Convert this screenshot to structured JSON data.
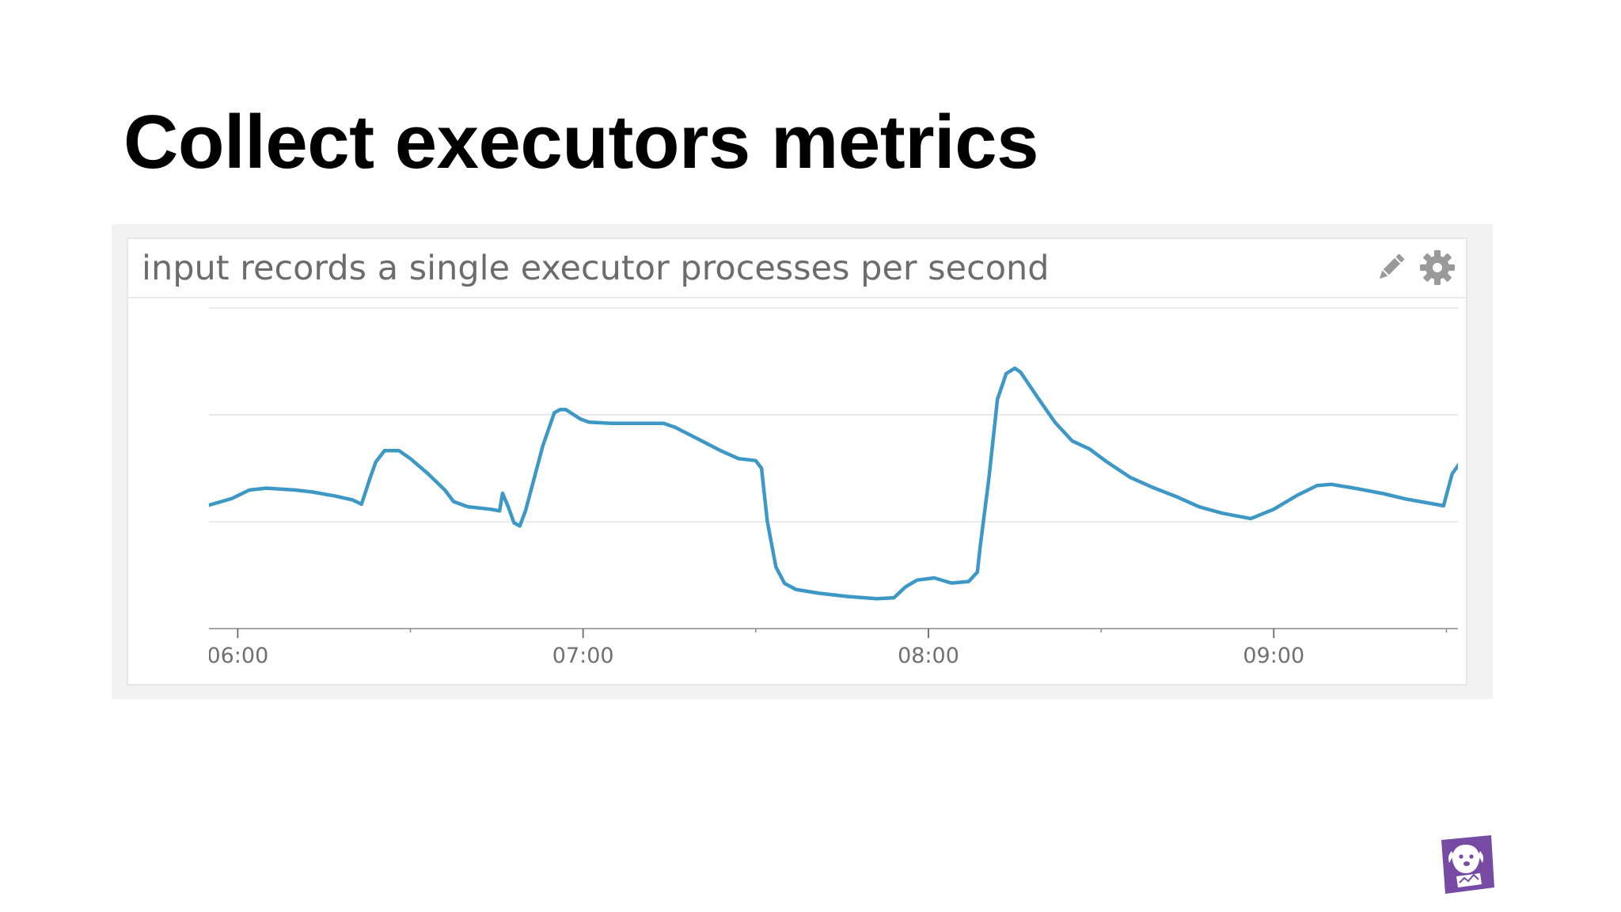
{
  "slide": {
    "title": "Collect executors metrics"
  },
  "widget": {
    "title": "input records a single executor processes per second",
    "edit_icon": "pencil-icon",
    "settings_icon": "gear-icon"
  },
  "logo": {
    "icon": "datadog-logo",
    "color": "#774aa4"
  },
  "chart_data": {
    "type": "line",
    "title": "input records a single executor processes per second",
    "xlabel": "",
    "ylabel": "",
    "x_ticks": [
      "06:00",
      "07:00",
      "08:00",
      "09:00"
    ],
    "x_tick_values": [
      0,
      60,
      120,
      180
    ],
    "xlim": [
      -5,
      212
    ],
    "ylim": [
      0,
      1
    ],
    "y_gridlines": [
      0.333,
      0.667,
      1.0
    ],
    "y_tick_labels_visible": false,
    "grid": "horizontal",
    "legend": "none",
    "line_color": "#3d98c5",
    "series": [
      {
        "points": [
          [
            -5,
            0.385
          ],
          [
            -1,
            0.406
          ],
          [
            2,
            0.432
          ],
          [
            5,
            0.438
          ],
          [
            10,
            0.432
          ],
          [
            13,
            0.426
          ],
          [
            17,
            0.413
          ],
          [
            20,
            0.401
          ],
          [
            21.5,
            0.388
          ],
          [
            23,
            0.47
          ],
          [
            24,
            0.52
          ],
          [
            25.5,
            0.555
          ],
          [
            28,
            0.555
          ],
          [
            30,
            0.53
          ],
          [
            33,
            0.484
          ],
          [
            36,
            0.432
          ],
          [
            37.5,
            0.396
          ],
          [
            40,
            0.38
          ],
          [
            44,
            0.372
          ],
          [
            45.5,
            0.367
          ],
          [
            46,
            0.422
          ],
          [
            47,
            0.38
          ],
          [
            48,
            0.33
          ],
          [
            49,
            0.32
          ],
          [
            50,
            0.368
          ],
          [
            53,
            0.57
          ],
          [
            55,
            0.673
          ],
          [
            56,
            0.683
          ],
          [
            57,
            0.683
          ],
          [
            59.5,
            0.654
          ],
          [
            61,
            0.644
          ],
          [
            65,
            0.64
          ],
          [
            74,
            0.64
          ],
          [
            76,
            0.628
          ],
          [
            80,
            0.591
          ],
          [
            84,
            0.554
          ],
          [
            87,
            0.53
          ],
          [
            90,
            0.524
          ],
          [
            91,
            0.5
          ],
          [
            92,
            0.335
          ],
          [
            93.5,
            0.192
          ],
          [
            95,
            0.141
          ],
          [
            97,
            0.122
          ],
          [
            101,
            0.11
          ],
          [
            106,
            0.1
          ],
          [
            111,
            0.093
          ],
          [
            114,
            0.096
          ],
          [
            116,
            0.13
          ],
          [
            118,
            0.151
          ],
          [
            121,
            0.158
          ],
          [
            124,
            0.142
          ],
          [
            127,
            0.147
          ],
          [
            128.5,
            0.176
          ],
          [
            129,
            0.256
          ],
          [
            130.5,
            0.467
          ],
          [
            132,
            0.715
          ],
          [
            133.5,
            0.795
          ],
          [
            135,
            0.812
          ],
          [
            136,
            0.8
          ],
          [
            139,
            0.72
          ],
          [
            142,
            0.643
          ],
          [
            145,
            0.585
          ],
          [
            148,
            0.56
          ],
          [
            151,
            0.52
          ],
          [
            155,
            0.472
          ],
          [
            159,
            0.44
          ],
          [
            163,
            0.412
          ],
          [
            167,
            0.38
          ],
          [
            171,
            0.36
          ],
          [
            176,
            0.343
          ],
          [
            180,
            0.372
          ],
          [
            184,
            0.415
          ],
          [
            187.5,
            0.446
          ],
          [
            190,
            0.45
          ],
          [
            194,
            0.438
          ],
          [
            199,
            0.421
          ],
          [
            203,
            0.404
          ],
          [
            208,
            0.388
          ],
          [
            209.5,
            0.383
          ],
          [
            211,
            0.483
          ],
          [
            213,
            0.533
          ],
          [
            214,
            0.537
          ],
          [
            215,
            0.533
          ]
        ]
      }
    ]
  }
}
